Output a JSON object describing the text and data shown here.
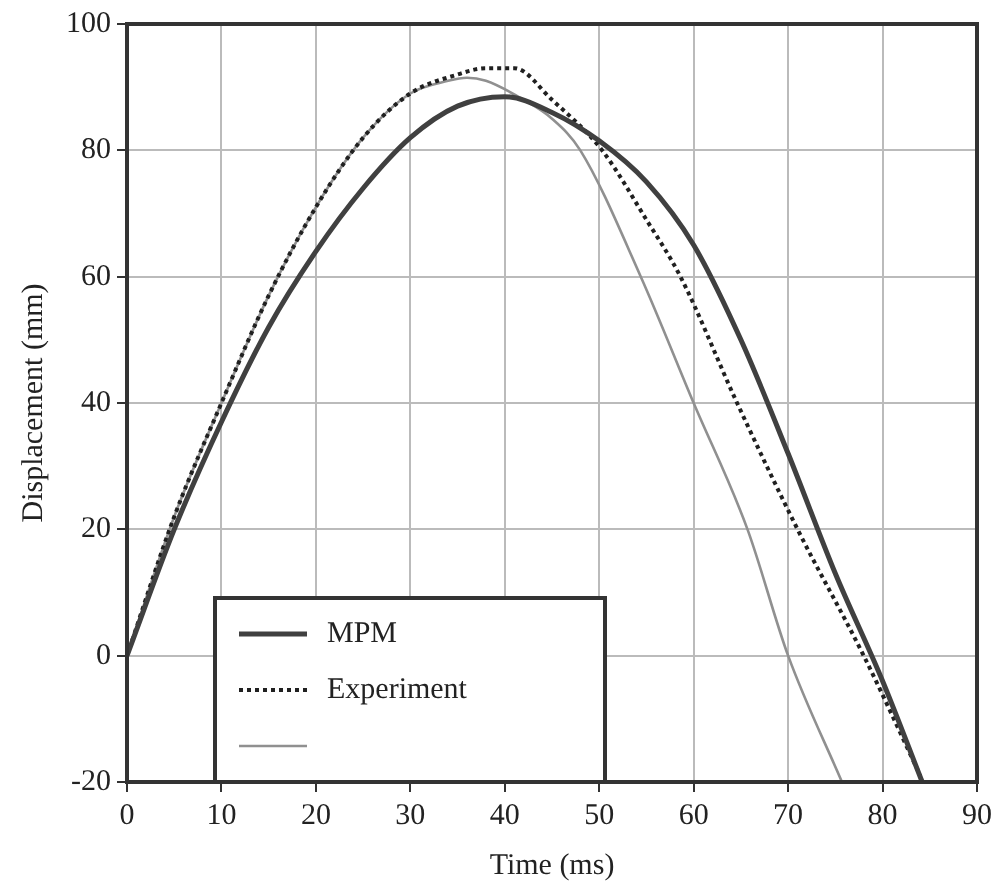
{
  "chart_data": {
    "type": "line",
    "xlabel": "Time (ms)",
    "ylabel": "Displacement (mm)",
    "xlim": [
      0,
      90
    ],
    "ylim": [
      -20,
      100
    ],
    "xticks": [
      0,
      10,
      20,
      30,
      40,
      50,
      60,
      70,
      80,
      90
    ],
    "yticks": [
      -20,
      0,
      20,
      40,
      60,
      80,
      100
    ],
    "grid": true,
    "legend": "bottom left",
    "marker": "none",
    "series": [
      {
        "name": "MPM",
        "color": "#404040",
        "line_style": "solid",
        "x": [
          0,
          5,
          10,
          15,
          20,
          25,
          30,
          35,
          40,
          45,
          50,
          55,
          60,
          65,
          70,
          75,
          80,
          84.2
        ],
        "values": [
          0,
          20,
          37,
          52,
          64,
          74,
          82,
          87,
          88.5,
          86,
          81.5,
          75,
          65,
          50,
          32,
          13,
          -4,
          -20
        ]
      },
      {
        "name": "Experiment",
        "color": "#202020",
        "line_style": "dotted",
        "x": [
          0,
          5,
          10,
          15,
          20,
          25,
          30,
          35,
          38,
          41,
          45,
          50.3,
          55,
          58.6,
          64.6,
          71,
          78,
          84
        ],
        "values": [
          0,
          22,
          40,
          57,
          71,
          82,
          89,
          92,
          93,
          93,
          88,
          80,
          69,
          60,
          40,
          20,
          0,
          -19
        ]
      },
      {
        "color": "#909090",
        "line_style": "solid",
        "x": [
          0,
          5,
          10,
          15,
          20,
          25,
          30,
          34,
          36,
          38,
          42,
          45,
          48,
          54.4,
          60,
          65.7,
          70,
          75.7
        ],
        "values": [
          0,
          22,
          40,
          57,
          71,
          82,
          89,
          91,
          91.5,
          91,
          88,
          85,
          80,
          60,
          40,
          20,
          0,
          -20
        ]
      }
    ]
  }
}
